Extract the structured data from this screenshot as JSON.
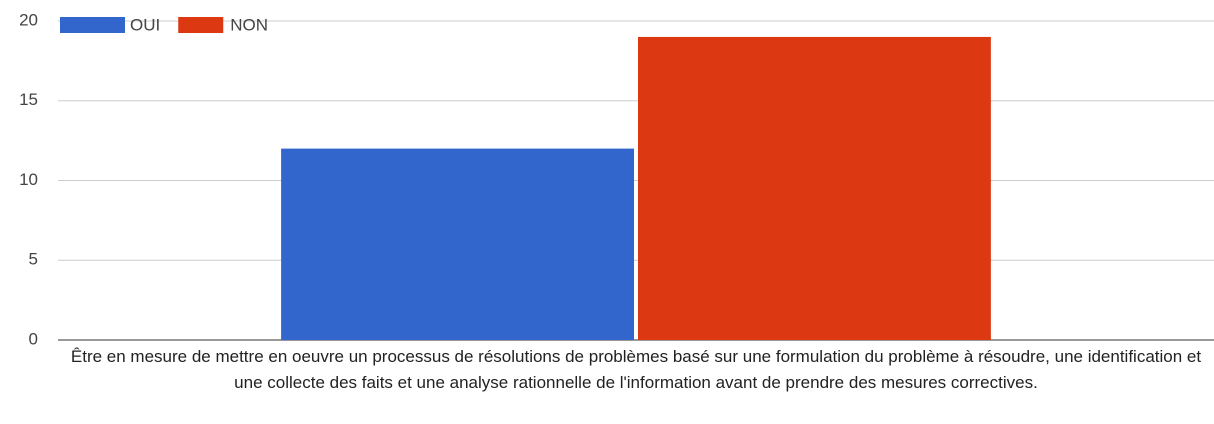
{
  "chart_data": {
    "type": "bar",
    "categories": [
      "Être en mesure de mettre en oeuvre un processus de résolutions de problèmes basé sur une formulation du problème à résoudre, une identification et une collecte des faits et une analyse rationnelle de l'information avant de prendre des mesures correctives."
    ],
    "series": [
      {
        "name": "OUI",
        "color": "#3366cc",
        "values": [
          12
        ]
      },
      {
        "name": "NON",
        "color": "#dc3912",
        "values": [
          19
        ]
      }
    ],
    "ylim": [
      0,
      20
    ],
    "yticks": [
      0,
      5,
      10,
      15,
      20
    ],
    "grid": true,
    "legend": "top"
  }
}
